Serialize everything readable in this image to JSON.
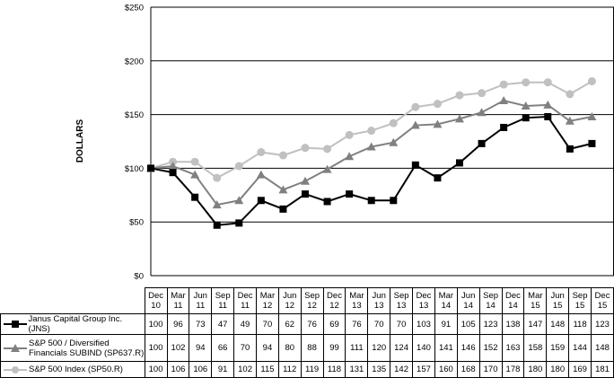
{
  "chart_data": {
    "type": "line",
    "ylabel": "DOLLARS",
    "ylim": [
      0,
      250
    ],
    "yticks": [
      "$0",
      "$50",
      "$100",
      "$150",
      "$200",
      "$250"
    ],
    "ytick_values": [
      0,
      50,
      100,
      150,
      200,
      250
    ],
    "grid": "horizontal",
    "categories": [
      [
        "Dec",
        "10"
      ],
      [
        "Mar",
        "11"
      ],
      [
        "Jun",
        "11"
      ],
      [
        "Sep",
        "11"
      ],
      [
        "Dec",
        "11"
      ],
      [
        "Mar",
        "12"
      ],
      [
        "Jun",
        "12"
      ],
      [
        "Sep",
        "12"
      ],
      [
        "Dec",
        "12"
      ],
      [
        "Mar",
        "13"
      ],
      [
        "Jun",
        "13"
      ],
      [
        "Sep",
        "13"
      ],
      [
        "Dec",
        "13"
      ],
      [
        "Mar",
        "14"
      ],
      [
        "Jun",
        "14"
      ],
      [
        "Sep",
        "14"
      ],
      [
        "Dec",
        "14"
      ],
      [
        "Mar",
        "15"
      ],
      [
        "Jun",
        "15"
      ],
      [
        "Sep",
        "15"
      ],
      [
        "Dec",
        "15"
      ]
    ],
    "series": [
      {
        "name": "Janus Capital Group Inc. (JNS)",
        "name_lines": [
          "Janus Capital Group Inc. (JNS)"
        ],
        "color": "#000000",
        "marker": "square",
        "values": [
          100,
          96,
          73,
          47,
          49,
          70,
          62,
          76,
          69,
          76,
          70,
          70,
          103,
          91,
          105,
          123,
          138,
          147,
          148,
          118,
          123
        ]
      },
      {
        "name": "S&P 500 / Diversified Financials SUBIND (SP637.R)",
        "name_lines": [
          "S&P 500 / Diversified",
          "Financials SUBIND (SP637.R)"
        ],
        "color": "#808080",
        "marker": "triangle",
        "values": [
          100,
          102,
          94,
          66,
          70,
          94,
          80,
          88,
          99,
          111,
          120,
          124,
          140,
          141,
          146,
          152,
          163,
          158,
          159,
          144,
          148
        ]
      },
      {
        "name": "S&P 500 Index (SP50.R)",
        "name_lines": [
          "S&P 500 Index (SP50.R)"
        ],
        "color": "#c0c0c0",
        "marker": "circle",
        "values": [
          100,
          106,
          106,
          91,
          102,
          115,
          112,
          119,
          118,
          131,
          135,
          142,
          157,
          160,
          168,
          170,
          178,
          180,
          180,
          169,
          181
        ]
      }
    ]
  }
}
